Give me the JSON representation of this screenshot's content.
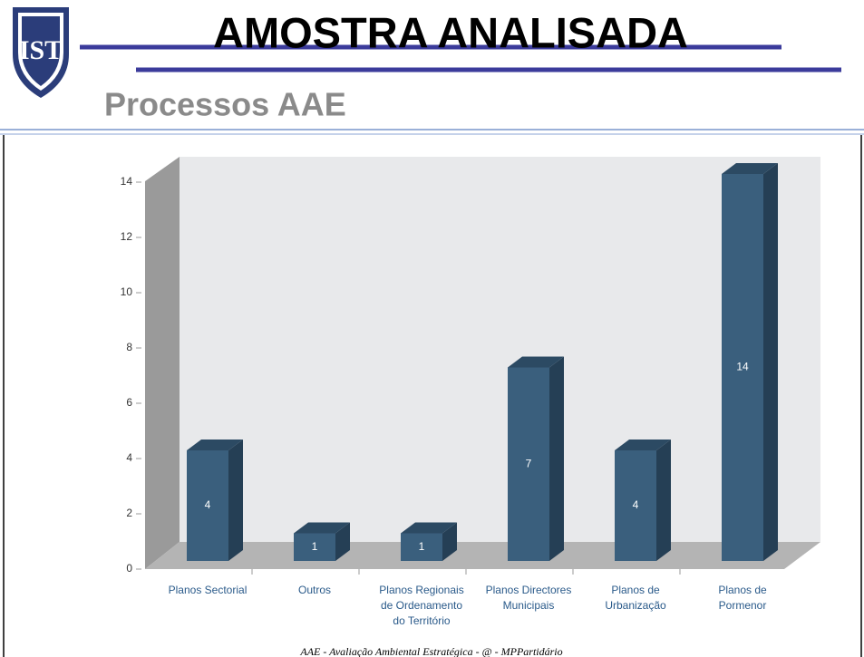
{
  "header": {
    "title": "AMOSTRA ANALISADA",
    "subtitle": "Processos AAE"
  },
  "chart_data": {
    "type": "bar3d",
    "categories": [
      "Planos Sectorial",
      "Outros",
      "Planos  Regionais\nde Ordenamento\ndo Território",
      "Planos Directores\nMunicipais",
      "Planos de\nUrbanização",
      "Planos de\nPormenor"
    ],
    "values": [
      4,
      1,
      1,
      7,
      4,
      14
    ],
    "color": "#3a5f7d",
    "ylim": [
      0,
      14
    ],
    "yticks": [
      0,
      2,
      4,
      6,
      8,
      10,
      12,
      14
    ]
  },
  "footer": "AAE - Avaliação Ambiental Estratégica - @ - MPPartidário"
}
